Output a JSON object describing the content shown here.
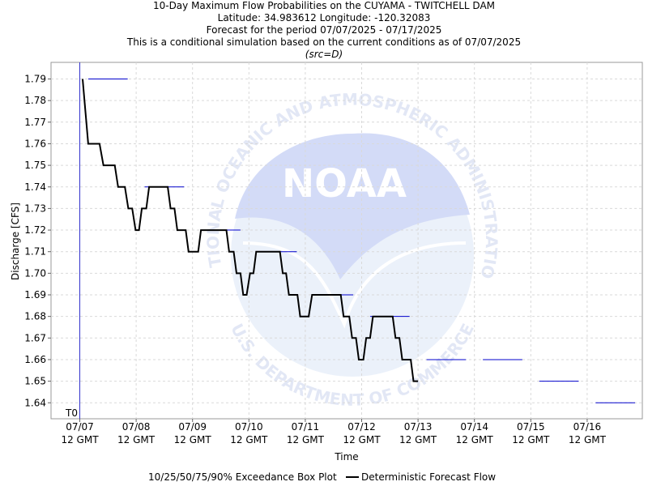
{
  "titles": {
    "line1": "10-Day Maximum Flow Probabilities on the CUYAMA - TWITCHELL DAM",
    "line2": "Latitude: 34.983612 Longitude: -120.32083",
    "line3": "Forecast for the period 07/07/2025 - 07/17/2025",
    "line4": "This is a conditional simulation based on the current conditions as of 07/07/2025",
    "line5": "(src=D)"
  },
  "watermark": {
    "logo_text": "NOAA",
    "arc_top": "NATIONAL OCEANIC AND ATMOSPHERIC ADMINISTRATION",
    "arc_bottom": "U.S. DEPARTMENT OF COMMERCE"
  },
  "colors": {
    "forecast_line": "#000000",
    "box_plot": "#0000cc",
    "t0_line": "#3333cc",
    "grid": "#d9d9d9"
  },
  "legend": {
    "box_plot_label": "10/25/50/75/90% Exceedance Box Plot",
    "forecast_label": "Deterministic Forecast Flow"
  },
  "chart_data": {
    "type": "line",
    "xlabel": "Time",
    "ylabel": "Discharge [CFS]",
    "t0_label": "T0",
    "ylim": [
      1.635,
      1.8
    ],
    "xlim": [
      0,
      10.2
    ],
    "grid": true,
    "legend_position": "bottom",
    "yticks": [
      1.64,
      1.65,
      1.66,
      1.67,
      1.68,
      1.69,
      1.7,
      1.71,
      1.72,
      1.73,
      1.74,
      1.75,
      1.76,
      1.77,
      1.78,
      1.79
    ],
    "x_ticks": [
      {
        "x": 0,
        "date": "07/07",
        "time": "12 GMT"
      },
      {
        "x": 1,
        "date": "07/08",
        "time": "12 GMT"
      },
      {
        "x": 2,
        "date": "07/09",
        "time": "12 GMT"
      },
      {
        "x": 3,
        "date": "07/10",
        "time": "12 GMT"
      },
      {
        "x": 4,
        "date": "07/11",
        "time": "12 GMT"
      },
      {
        "x": 5,
        "date": "07/12",
        "time": "12 GMT"
      },
      {
        "x": 6,
        "date": "07/13",
        "time": "12 GMT"
      },
      {
        "x": 7,
        "date": "07/14",
        "time": "12 GMT"
      },
      {
        "x": 8,
        "date": "07/15",
        "time": "12 GMT"
      },
      {
        "x": 9,
        "date": "07/16",
        "time": "12 GMT"
      }
    ],
    "series": [
      {
        "name": "Deterministic Forecast Flow",
        "points": [
          [
            0.05,
            1.79
          ],
          [
            0.15,
            1.76
          ],
          [
            0.35,
            1.76
          ],
          [
            0.42,
            1.75
          ],
          [
            0.62,
            1.75
          ],
          [
            0.68,
            1.74
          ],
          [
            0.8,
            1.74
          ],
          [
            0.86,
            1.73
          ],
          [
            0.93,
            1.73
          ],
          [
            0.99,
            1.72
          ],
          [
            1.05,
            1.72
          ],
          [
            1.1,
            1.73
          ],
          [
            1.18,
            1.73
          ],
          [
            1.23,
            1.74
          ],
          [
            1.56,
            1.74
          ],
          [
            1.61,
            1.73
          ],
          [
            1.68,
            1.73
          ],
          [
            1.73,
            1.72
          ],
          [
            1.88,
            1.72
          ],
          [
            1.93,
            1.71
          ],
          [
            2.1,
            1.71
          ],
          [
            2.15,
            1.72
          ],
          [
            2.6,
            1.72
          ],
          [
            2.65,
            1.71
          ],
          [
            2.73,
            1.71
          ],
          [
            2.78,
            1.7
          ],
          [
            2.85,
            1.7
          ],
          [
            2.9,
            1.69
          ],
          [
            2.96,
            1.69
          ],
          [
            3.02,
            1.7
          ],
          [
            3.08,
            1.7
          ],
          [
            3.13,
            1.71
          ],
          [
            3.55,
            1.71
          ],
          [
            3.6,
            1.7
          ],
          [
            3.66,
            1.7
          ],
          [
            3.71,
            1.69
          ],
          [
            3.86,
            1.69
          ],
          [
            3.91,
            1.68
          ],
          [
            4.06,
            1.68
          ],
          [
            4.12,
            1.69
          ],
          [
            4.63,
            1.69
          ],
          [
            4.68,
            1.68
          ],
          [
            4.78,
            1.68
          ],
          [
            4.83,
            1.67
          ],
          [
            4.9,
            1.67
          ],
          [
            4.95,
            1.66
          ],
          [
            5.03,
            1.66
          ],
          [
            5.08,
            1.67
          ],
          [
            5.15,
            1.67
          ],
          [
            5.2,
            1.68
          ],
          [
            5.55,
            1.68
          ],
          [
            5.6,
            1.67
          ],
          [
            5.67,
            1.67
          ],
          [
            5.72,
            1.66
          ],
          [
            5.87,
            1.66
          ],
          [
            5.92,
            1.65
          ],
          [
            6.0,
            1.65
          ]
        ]
      }
    ],
    "box_plot": [
      {
        "x_start": 0.15,
        "x_end": 0.85,
        "value": 1.79
      },
      {
        "x_start": 1.15,
        "x_end": 1.85,
        "value": 1.74
      },
      {
        "x_start": 2.15,
        "x_end": 2.85,
        "value": 1.72
      },
      {
        "x_start": 3.15,
        "x_end": 3.85,
        "value": 1.71
      },
      {
        "x_start": 4.15,
        "x_end": 4.85,
        "value": 1.69
      },
      {
        "x_start": 5.15,
        "x_end": 5.85,
        "value": 1.68
      },
      {
        "x_start": 6.15,
        "x_end": 6.85,
        "value": 1.66
      },
      {
        "x_start": 7.15,
        "x_end": 7.85,
        "value": 1.66
      },
      {
        "x_start": 8.15,
        "x_end": 8.85,
        "value": 1.65
      },
      {
        "x_start": 9.15,
        "x_end": 9.85,
        "value": 1.64
      }
    ]
  }
}
